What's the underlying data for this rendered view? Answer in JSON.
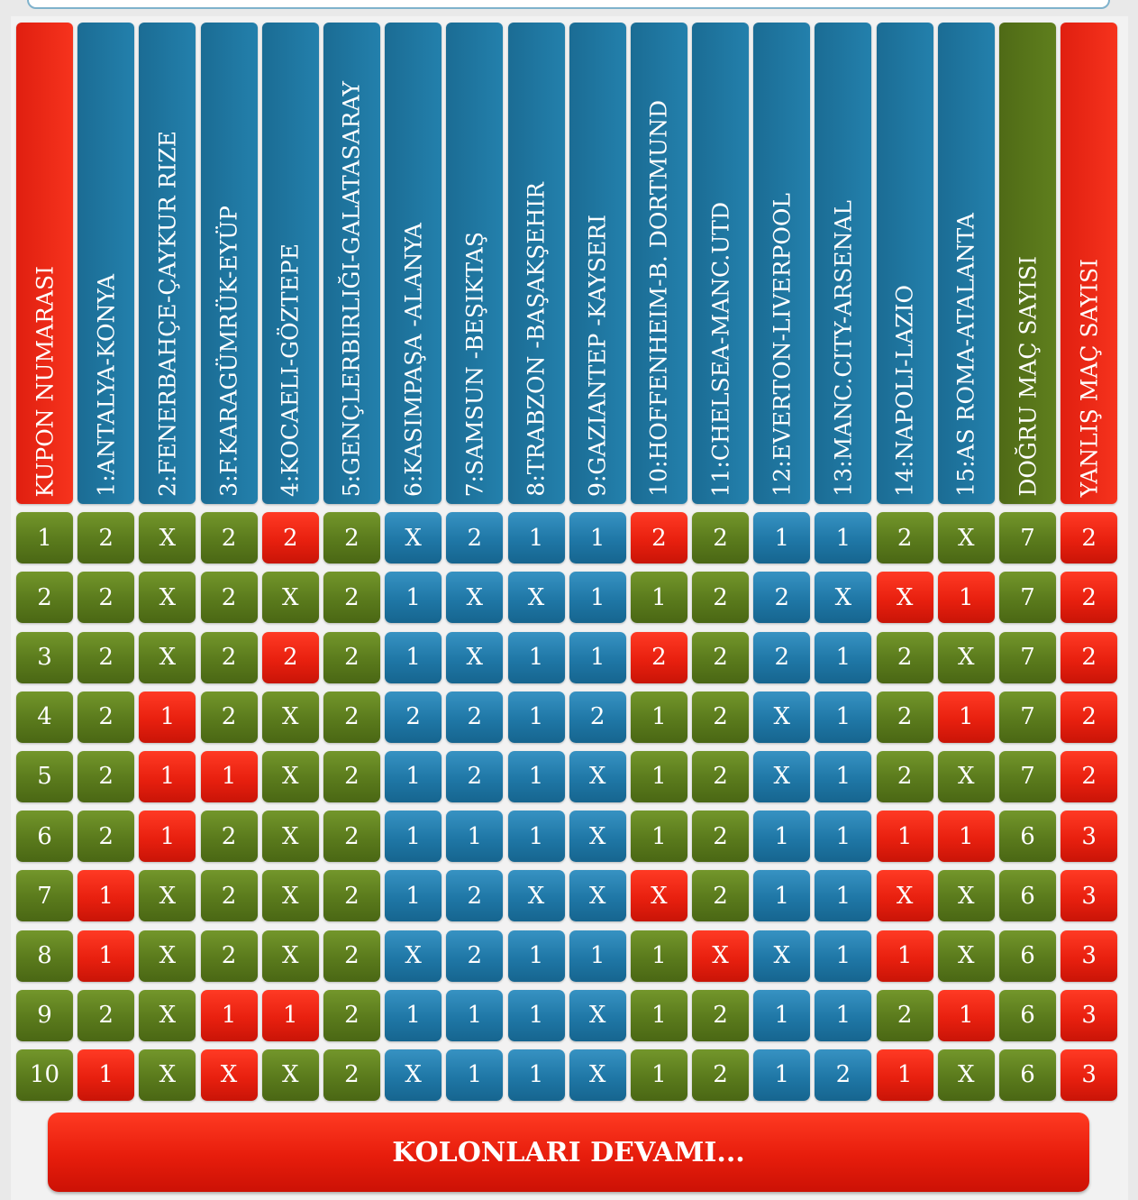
{
  "colors": {
    "red": "#e8200f",
    "blue": "#1f77a6",
    "green": "#5a7a1c"
  },
  "headers": [
    {
      "label": "KUPON NUMARASI",
      "color": "red"
    },
    {
      "label": "1:ANTALYA-KONYA",
      "color": "blue"
    },
    {
      "label": "2:FENERBAHÇE-ÇAYKUR RIZE",
      "color": "blue"
    },
    {
      "label": "3:F.KARAGÜMRÜK-EYÜP",
      "color": "blue"
    },
    {
      "label": "4:KOCAELI-GÖZTEPE",
      "color": "blue"
    },
    {
      "label": "5:GENÇLERBIRLIĞI-GALATASARAY",
      "color": "blue"
    },
    {
      "label": "6:KASIMPAŞA -ALANYA",
      "color": "blue"
    },
    {
      "label": "7:SAMSUN -BEŞIKTAŞ",
      "color": "blue"
    },
    {
      "label": "8:TRABZON -BAŞAKŞEHIR",
      "color": "blue"
    },
    {
      "label": "9:GAZIANTEP -KAYSERI",
      "color": "blue"
    },
    {
      "label": "10:HOFFENHEIM-B. DORTMUND",
      "color": "blue"
    },
    {
      "label": "11:CHELSEA-MANC.UTD",
      "color": "blue"
    },
    {
      "label": "12:EVERTON-LIVERPOOL",
      "color": "blue"
    },
    {
      "label": "13:MANC.CITY-ARSENAL",
      "color": "blue"
    },
    {
      "label": "14:NAPOLI-LAZIO",
      "color": "blue"
    },
    {
      "label": "15:AS ROMA-ATALANTA",
      "color": "blue"
    },
    {
      "label": "DOĞRU MAÇ SAYISI",
      "color": "green"
    },
    {
      "label": "YANLIŞ MAÇ SAYISI",
      "color": "red"
    }
  ],
  "rows": [
    {
      "cells": [
        {
          "v": "1",
          "c": "green"
        },
        {
          "v": "2",
          "c": "green"
        },
        {
          "v": "X",
          "c": "green"
        },
        {
          "v": "2",
          "c": "green"
        },
        {
          "v": "2",
          "c": "red"
        },
        {
          "v": "2",
          "c": "green"
        },
        {
          "v": "X",
          "c": "blue"
        },
        {
          "v": "2",
          "c": "blue"
        },
        {
          "v": "1",
          "c": "blue"
        },
        {
          "v": "1",
          "c": "blue"
        },
        {
          "v": "2",
          "c": "red"
        },
        {
          "v": "2",
          "c": "green"
        },
        {
          "v": "1",
          "c": "blue"
        },
        {
          "v": "1",
          "c": "blue"
        },
        {
          "v": "2",
          "c": "green"
        },
        {
          "v": "X",
          "c": "green"
        },
        {
          "v": "7",
          "c": "green"
        },
        {
          "v": "2",
          "c": "red"
        }
      ]
    },
    {
      "cells": [
        {
          "v": "2",
          "c": "green"
        },
        {
          "v": "2",
          "c": "green"
        },
        {
          "v": "X",
          "c": "green"
        },
        {
          "v": "2",
          "c": "green"
        },
        {
          "v": "X",
          "c": "green"
        },
        {
          "v": "2",
          "c": "green"
        },
        {
          "v": "1",
          "c": "blue"
        },
        {
          "v": "X",
          "c": "blue"
        },
        {
          "v": "X",
          "c": "blue"
        },
        {
          "v": "1",
          "c": "blue"
        },
        {
          "v": "1",
          "c": "green"
        },
        {
          "v": "2",
          "c": "green"
        },
        {
          "v": "2",
          "c": "blue"
        },
        {
          "v": "X",
          "c": "blue"
        },
        {
          "v": "X",
          "c": "red"
        },
        {
          "v": "1",
          "c": "red"
        },
        {
          "v": "7",
          "c": "green"
        },
        {
          "v": "2",
          "c": "red"
        }
      ]
    },
    {
      "cells": [
        {
          "v": "3",
          "c": "green"
        },
        {
          "v": "2",
          "c": "green"
        },
        {
          "v": "X",
          "c": "green"
        },
        {
          "v": "2",
          "c": "green"
        },
        {
          "v": "2",
          "c": "red"
        },
        {
          "v": "2",
          "c": "green"
        },
        {
          "v": "1",
          "c": "blue"
        },
        {
          "v": "X",
          "c": "blue"
        },
        {
          "v": "1",
          "c": "blue"
        },
        {
          "v": "1",
          "c": "blue"
        },
        {
          "v": "2",
          "c": "red"
        },
        {
          "v": "2",
          "c": "green"
        },
        {
          "v": "2",
          "c": "blue"
        },
        {
          "v": "1",
          "c": "blue"
        },
        {
          "v": "2",
          "c": "green"
        },
        {
          "v": "X",
          "c": "green"
        },
        {
          "v": "7",
          "c": "green"
        },
        {
          "v": "2",
          "c": "red"
        }
      ]
    },
    {
      "cells": [
        {
          "v": "4",
          "c": "green"
        },
        {
          "v": "2",
          "c": "green"
        },
        {
          "v": "1",
          "c": "red"
        },
        {
          "v": "2",
          "c": "green"
        },
        {
          "v": "X",
          "c": "green"
        },
        {
          "v": "2",
          "c": "green"
        },
        {
          "v": "2",
          "c": "blue"
        },
        {
          "v": "2",
          "c": "blue"
        },
        {
          "v": "1",
          "c": "blue"
        },
        {
          "v": "2",
          "c": "blue"
        },
        {
          "v": "1",
          "c": "green"
        },
        {
          "v": "2",
          "c": "green"
        },
        {
          "v": "X",
          "c": "blue"
        },
        {
          "v": "1",
          "c": "blue"
        },
        {
          "v": "2",
          "c": "green"
        },
        {
          "v": "1",
          "c": "red"
        },
        {
          "v": "7",
          "c": "green"
        },
        {
          "v": "2",
          "c": "red"
        }
      ]
    },
    {
      "cells": [
        {
          "v": "5",
          "c": "green"
        },
        {
          "v": "2",
          "c": "green"
        },
        {
          "v": "1",
          "c": "red"
        },
        {
          "v": "1",
          "c": "red"
        },
        {
          "v": "X",
          "c": "green"
        },
        {
          "v": "2",
          "c": "green"
        },
        {
          "v": "1",
          "c": "blue"
        },
        {
          "v": "2",
          "c": "blue"
        },
        {
          "v": "1",
          "c": "blue"
        },
        {
          "v": "X",
          "c": "blue"
        },
        {
          "v": "1",
          "c": "green"
        },
        {
          "v": "2",
          "c": "green"
        },
        {
          "v": "X",
          "c": "blue"
        },
        {
          "v": "1",
          "c": "blue"
        },
        {
          "v": "2",
          "c": "green"
        },
        {
          "v": "X",
          "c": "green"
        },
        {
          "v": "7",
          "c": "green"
        },
        {
          "v": "2",
          "c": "red"
        }
      ]
    },
    {
      "cells": [
        {
          "v": "6",
          "c": "green"
        },
        {
          "v": "2",
          "c": "green"
        },
        {
          "v": "1",
          "c": "red"
        },
        {
          "v": "2",
          "c": "green"
        },
        {
          "v": "X",
          "c": "green"
        },
        {
          "v": "2",
          "c": "green"
        },
        {
          "v": "1",
          "c": "blue"
        },
        {
          "v": "1",
          "c": "blue"
        },
        {
          "v": "1",
          "c": "blue"
        },
        {
          "v": "X",
          "c": "blue"
        },
        {
          "v": "1",
          "c": "green"
        },
        {
          "v": "2",
          "c": "green"
        },
        {
          "v": "1",
          "c": "blue"
        },
        {
          "v": "1",
          "c": "blue"
        },
        {
          "v": "1",
          "c": "red"
        },
        {
          "v": "1",
          "c": "red"
        },
        {
          "v": "6",
          "c": "green"
        },
        {
          "v": "3",
          "c": "red"
        }
      ]
    },
    {
      "cells": [
        {
          "v": "7",
          "c": "green"
        },
        {
          "v": "1",
          "c": "red"
        },
        {
          "v": "X",
          "c": "green"
        },
        {
          "v": "2",
          "c": "green"
        },
        {
          "v": "X",
          "c": "green"
        },
        {
          "v": "2",
          "c": "green"
        },
        {
          "v": "1",
          "c": "blue"
        },
        {
          "v": "2",
          "c": "blue"
        },
        {
          "v": "X",
          "c": "blue"
        },
        {
          "v": "X",
          "c": "blue"
        },
        {
          "v": "X",
          "c": "red"
        },
        {
          "v": "2",
          "c": "green"
        },
        {
          "v": "1",
          "c": "blue"
        },
        {
          "v": "1",
          "c": "blue"
        },
        {
          "v": "X",
          "c": "red"
        },
        {
          "v": "X",
          "c": "green"
        },
        {
          "v": "6",
          "c": "green"
        },
        {
          "v": "3",
          "c": "red"
        }
      ]
    },
    {
      "cells": [
        {
          "v": "8",
          "c": "green"
        },
        {
          "v": "1",
          "c": "red"
        },
        {
          "v": "X",
          "c": "green"
        },
        {
          "v": "2",
          "c": "green"
        },
        {
          "v": "X",
          "c": "green"
        },
        {
          "v": "2",
          "c": "green"
        },
        {
          "v": "X",
          "c": "blue"
        },
        {
          "v": "2",
          "c": "blue"
        },
        {
          "v": "1",
          "c": "blue"
        },
        {
          "v": "1",
          "c": "blue"
        },
        {
          "v": "1",
          "c": "green"
        },
        {
          "v": "X",
          "c": "red"
        },
        {
          "v": "X",
          "c": "blue"
        },
        {
          "v": "1",
          "c": "blue"
        },
        {
          "v": "1",
          "c": "red"
        },
        {
          "v": "X",
          "c": "green"
        },
        {
          "v": "6",
          "c": "green"
        },
        {
          "v": "3",
          "c": "red"
        }
      ]
    },
    {
      "cells": [
        {
          "v": "9",
          "c": "green"
        },
        {
          "v": "2",
          "c": "green"
        },
        {
          "v": "X",
          "c": "green"
        },
        {
          "v": "1",
          "c": "red"
        },
        {
          "v": "1",
          "c": "red"
        },
        {
          "v": "2",
          "c": "green"
        },
        {
          "v": "1",
          "c": "blue"
        },
        {
          "v": "1",
          "c": "blue"
        },
        {
          "v": "1",
          "c": "blue"
        },
        {
          "v": "X",
          "c": "blue"
        },
        {
          "v": "1",
          "c": "green"
        },
        {
          "v": "2",
          "c": "green"
        },
        {
          "v": "1",
          "c": "blue"
        },
        {
          "v": "1",
          "c": "blue"
        },
        {
          "v": "2",
          "c": "green"
        },
        {
          "v": "1",
          "c": "red"
        },
        {
          "v": "6",
          "c": "green"
        },
        {
          "v": "3",
          "c": "red"
        }
      ]
    },
    {
      "cells": [
        {
          "v": "10",
          "c": "green"
        },
        {
          "v": "1",
          "c": "red"
        },
        {
          "v": "X",
          "c": "green"
        },
        {
          "v": "X",
          "c": "red"
        },
        {
          "v": "X",
          "c": "green"
        },
        {
          "v": "2",
          "c": "green"
        },
        {
          "v": "X",
          "c": "blue"
        },
        {
          "v": "1",
          "c": "blue"
        },
        {
          "v": "1",
          "c": "blue"
        },
        {
          "v": "X",
          "c": "blue"
        },
        {
          "v": "1",
          "c": "green"
        },
        {
          "v": "2",
          "c": "green"
        },
        {
          "v": "1",
          "c": "blue"
        },
        {
          "v": "2",
          "c": "blue"
        },
        {
          "v": "1",
          "c": "red"
        },
        {
          "v": "X",
          "c": "green"
        },
        {
          "v": "6",
          "c": "green"
        },
        {
          "v": "3",
          "c": "red"
        }
      ]
    }
  ],
  "more_button": {
    "label": "KOLONLARI DEVAMI..."
  }
}
